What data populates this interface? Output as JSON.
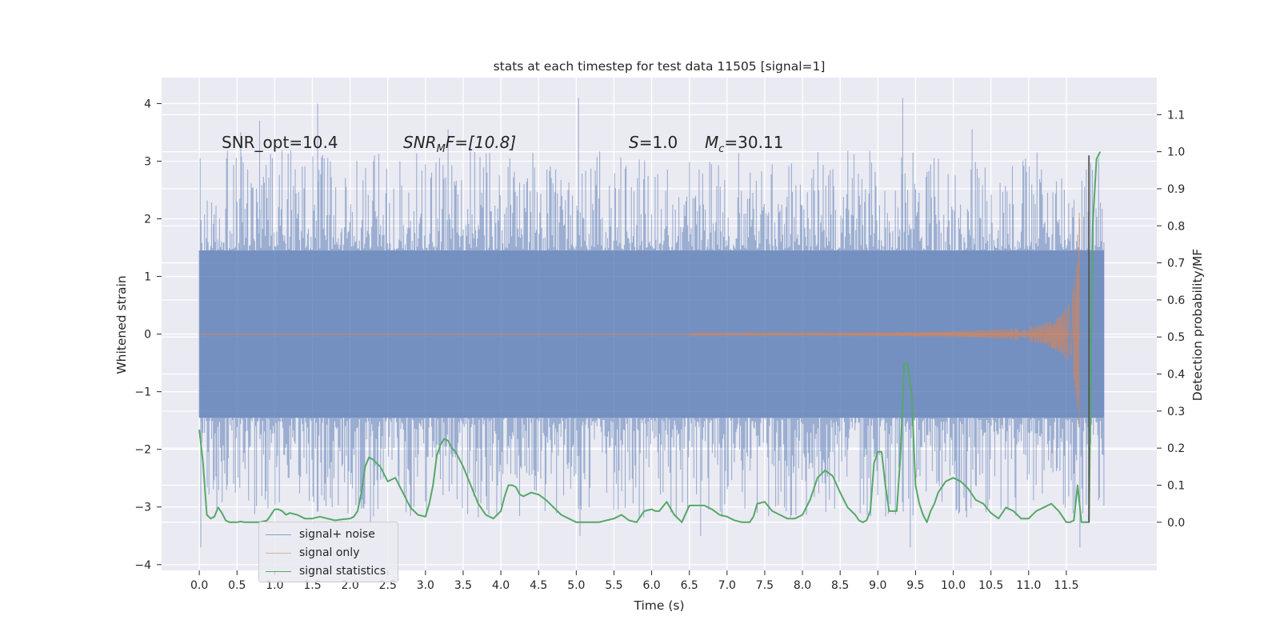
{
  "chart_data": {
    "type": "line",
    "title": "stats at each timestep for test data 11505 [signal=1]",
    "xlabel": "Time (s)",
    "ylabel": "Whitened strain",
    "y2label": "Detection probability/MF",
    "xlim": [
      -0.5,
      12.7
    ],
    "ylim": [
      -4.1,
      4.45
    ],
    "y2lim": [
      -0.13,
      1.2
    ],
    "xticks": [
      0.0,
      0.5,
      1.0,
      1.5,
      2.0,
      2.5,
      3.0,
      3.5,
      4.0,
      4.5,
      5.0,
      5.5,
      6.0,
      6.5,
      7.0,
      7.5,
      8.0,
      8.5,
      9.0,
      9.5,
      10.0,
      10.5,
      11.0,
      11.5
    ],
    "xtick_labels": [
      "0.0",
      "0.5",
      "1.0",
      "1.5",
      "2.0",
      "2.5",
      "3.0",
      "3.5",
      "4.0",
      "4.5",
      "5.0",
      "5.5",
      "6.0",
      "6.5",
      "7.0",
      "7.5",
      "8.0",
      "8.5",
      "9.0",
      "9.5",
      "10.0",
      "10.5",
      "11.0",
      "11.5"
    ],
    "yticks": [
      4,
      3,
      2,
      1,
      0,
      -1,
      -2,
      -3,
      -4
    ],
    "ytick_labels": [
      "4",
      "3",
      "2",
      "1",
      "0",
      "−1",
      "−2",
      "−3",
      "−4"
    ],
    "y2ticks": [
      1.1,
      1.0,
      0.9,
      0.8,
      0.7,
      0.6,
      0.5,
      0.4,
      0.3,
      0.2,
      0.1,
      0.0
    ],
    "y2tick_labels": [
      "1.1",
      "1.0",
      "0.9",
      "0.8",
      "0.7",
      "0.6",
      "0.5",
      "0.4",
      "0.3",
      "0.2",
      "0.1",
      "0.0"
    ],
    "grid": true,
    "legend_position": "lower-left",
    "annotations": {
      "snr_opt": "SNR_opt=10.4",
      "snr_mf_sym": "SNR",
      "snr_mf_sub": "M",
      "snr_mf_rest": "F=[10.8]",
      "s_sym": "S",
      "s_rest": "=1.0",
      "mc_sym": "M",
      "mc_sub": "c",
      "mc_rest": "=30.11"
    },
    "series": [
      {
        "name": "signal+ noise",
        "color": "#4c72b0",
        "alpha": 0.5,
        "x_start": 0.0,
        "x_end": 12.0,
        "core_amplitude": 1.45,
        "typical_peak": 2.3,
        "max_peaks": [
          {
            "x": 0.02,
            "y": -3.7
          },
          {
            "x": 0.55,
            "y": 3.5
          },
          {
            "x": 0.8,
            "y": 3.7
          },
          {
            "x": 1.57,
            "y": 4.0
          },
          {
            "x": 2.27,
            "y": -3.3
          },
          {
            "x": 3.3,
            "y": 3.55
          },
          {
            "x": 5.03,
            "y": 4.1
          },
          {
            "x": 5.05,
            "y": -3.5
          },
          {
            "x": 6.65,
            "y": -3.5
          },
          {
            "x": 9.33,
            "y": 4.1
          },
          {
            "x": 9.43,
            "y": -3.7
          },
          {
            "x": 10.25,
            "y": 3.55
          },
          {
            "x": 11.68,
            "y": -3.7
          }
        ]
      },
      {
        "name": "signal only",
        "color": "#dd8452",
        "x_start": 0.0,
        "x_end": 11.68,
        "peak_amplitude": 2.5
      },
      {
        "name": "signal statistics",
        "color": "#55a868",
        "axis": "right",
        "x": [
          0.0,
          0.05,
          0.1,
          0.15,
          0.2,
          0.25,
          0.3,
          0.35,
          0.4,
          0.45,
          0.5,
          0.55,
          0.6,
          0.7,
          0.8,
          0.9,
          1.0,
          1.05,
          1.1,
          1.15,
          1.2,
          1.3,
          1.4,
          1.5,
          1.6,
          1.7,
          1.8,
          1.9,
          2.0,
          2.05,
          2.1,
          2.15,
          2.2,
          2.25,
          2.3,
          2.35,
          2.4,
          2.45,
          2.5,
          2.55,
          2.6,
          2.7,
          2.8,
          2.9,
          3.0,
          3.05,
          3.1,
          3.15,
          3.2,
          3.25,
          3.3,
          3.35,
          3.4,
          3.5,
          3.6,
          3.7,
          3.8,
          3.9,
          4.0,
          4.05,
          4.1,
          4.15,
          4.2,
          4.25,
          4.3,
          4.4,
          4.5,
          4.6,
          4.7,
          4.8,
          4.9,
          5.0,
          5.1,
          5.2,
          5.3,
          5.4,
          5.5,
          5.6,
          5.7,
          5.8,
          5.9,
          6.0,
          6.05,
          6.1,
          6.2,
          6.3,
          6.4,
          6.5,
          6.6,
          6.7,
          6.8,
          6.9,
          7.0,
          7.1,
          7.2,
          7.3,
          7.35,
          7.4,
          7.5,
          7.6,
          7.7,
          7.8,
          7.9,
          8.0,
          8.1,
          8.2,
          8.3,
          8.4,
          8.5,
          8.6,
          8.7,
          8.75,
          8.8,
          8.85,
          8.9,
          8.95,
          9.0,
          9.05,
          9.1,
          9.15,
          9.2,
          9.25,
          9.3,
          9.35,
          9.4,
          9.45,
          9.5,
          9.55,
          9.6,
          9.65,
          9.7,
          9.75,
          9.8,
          9.9,
          10.0,
          10.1,
          10.2,
          10.3,
          10.4,
          10.5,
          10.6,
          10.7,
          10.8,
          10.9,
          11.0,
          11.1,
          11.2,
          11.3,
          11.4,
          11.5,
          11.55,
          11.6,
          11.65,
          11.7,
          11.75,
          11.8,
          11.85,
          11.9,
          11.95
        ],
        "values": [
          0.25,
          0.16,
          0.02,
          0.01,
          0.015,
          0.04,
          0.025,
          0.005,
          0.0,
          0.0,
          0.0,
          0.002,
          0.0,
          0.0,
          0.0,
          0.005,
          0.035,
          0.035,
          0.03,
          0.02,
          0.025,
          0.02,
          0.01,
          0.01,
          0.015,
          0.01,
          0.005,
          0.008,
          0.01,
          0.015,
          0.03,
          0.08,
          0.15,
          0.175,
          0.17,
          0.16,
          0.15,
          0.13,
          0.11,
          0.115,
          0.12,
          0.08,
          0.04,
          0.02,
          0.015,
          0.05,
          0.1,
          0.18,
          0.21,
          0.225,
          0.22,
          0.2,
          0.19,
          0.15,
          0.1,
          0.05,
          0.02,
          0.01,
          0.03,
          0.07,
          0.1,
          0.1,
          0.095,
          0.075,
          0.07,
          0.08,
          0.075,
          0.06,
          0.04,
          0.02,
          0.01,
          0.0,
          0.0,
          0.0,
          0.0,
          0.005,
          0.01,
          0.02,
          0.005,
          0.0,
          0.03,
          0.035,
          0.03,
          0.03,
          0.055,
          0.02,
          0.0,
          0.045,
          0.045,
          0.045,
          0.035,
          0.02,
          0.015,
          0.005,
          0.0,
          0.0,
          0.015,
          0.05,
          0.055,
          0.03,
          0.02,
          0.01,
          0.01,
          0.02,
          0.06,
          0.12,
          0.14,
          0.125,
          0.08,
          0.04,
          0.02,
          0.005,
          0.0,
          0.005,
          0.03,
          0.16,
          0.19,
          0.19,
          0.1,
          0.03,
          0.03,
          0.03,
          0.18,
          0.43,
          0.425,
          0.34,
          0.1,
          0.05,
          0.02,
          0.0,
          0.03,
          0.05,
          0.08,
          0.11,
          0.12,
          0.11,
          0.09,
          0.06,
          0.05,
          0.025,
          0.01,
          0.04,
          0.03,
          0.01,
          0.01,
          0.03,
          0.04,
          0.05,
          0.03,
          0.0,
          0.0,
          0.005,
          0.1,
          0.0,
          0.0,
          0.0,
          0.8,
          0.98,
          1.0
        ]
      }
    ],
    "vertical_line": {
      "x": 11.8,
      "y2_from": 0.0,
      "y2_to": 0.99,
      "color": "#555555"
    }
  },
  "legend": {
    "items": [
      {
        "label": "signal+ noise",
        "color": "#4c72b0"
      },
      {
        "label": "signal only",
        "color": "#dd8452"
      },
      {
        "label": "signal statistics",
        "color": "#55a868"
      }
    ]
  },
  "style": {
    "plot_background": "#eaeaf2",
    "grid_color": "#ffffff",
    "text_color": "#262626"
  }
}
